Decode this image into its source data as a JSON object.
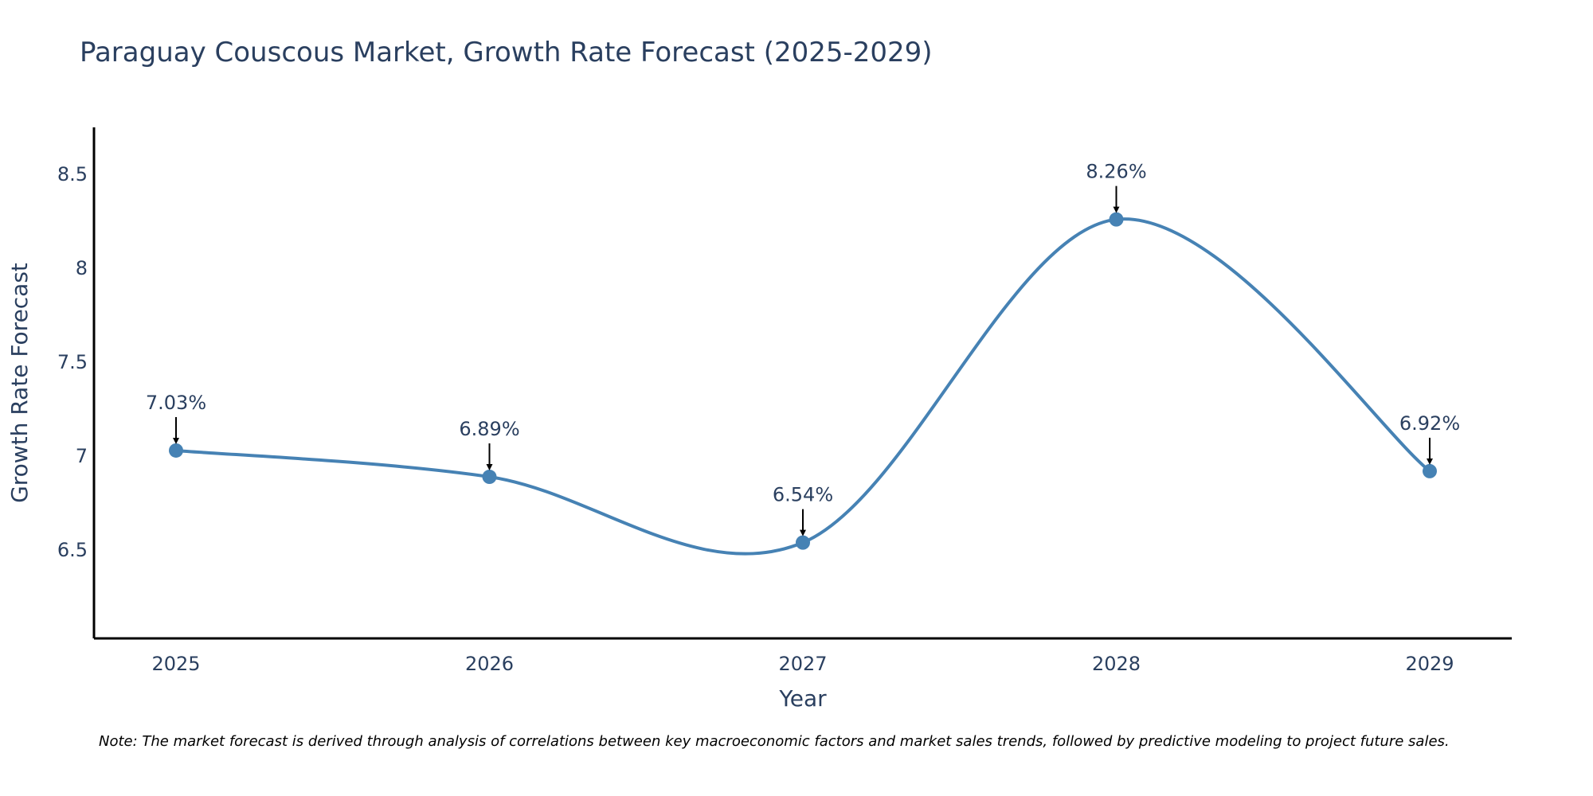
{
  "chart_data": {
    "type": "line",
    "title": "Paraguay Couscous Market, Growth Rate Forecast (2025-2029)",
    "xlabel": "Year",
    "ylabel": "Growth Rate Forecast",
    "categories": [
      "2025",
      "2026",
      "2027",
      "2028",
      "2029"
    ],
    "series": [
      {
        "name": "Growth Rate Forecast",
        "values": [
          7.03,
          6.89,
          6.54,
          8.26,
          6.92
        ],
        "color": "#4682B4"
      }
    ],
    "data_labels": [
      "7.03%",
      "6.89%",
      "6.54%",
      "8.26%",
      "6.92%"
    ],
    "ylim": [
      6.03,
      8.75
    ],
    "yticks": [
      6.5,
      7,
      7.5,
      8,
      8.5
    ],
    "ytick_labels": [
      "6.5",
      "7",
      "7.5",
      "8",
      "8.5"
    ],
    "line_shape": "spline",
    "grid": false,
    "annotation_arrow_color": "#000000",
    "axis_color": "#000000",
    "text_color": "#2a3f5f"
  },
  "note": "Note: The market forecast is derived through analysis of correlations between key macroeconomic factors and market sales trends, followed by predictive modeling to project future sales."
}
